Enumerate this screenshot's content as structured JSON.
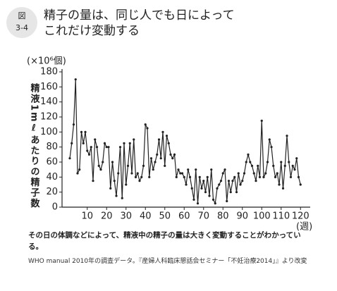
{
  "badge": {
    "label": "図",
    "number": "3-4"
  },
  "caption": "その日の体調などによって、精液中の精子の量は大きく変動することがわかっている。",
  "source": "WHO manual 2010年の調査データ。『産婦人科臨床懇話会セミナー「不妊治療2014」』より改変",
  "chart_data": {
    "type": "line",
    "title": [
      "精子の量は、同じ人でも日によって",
      "これだけ変動する"
    ],
    "y_unit": "(×10⁶個)",
    "y_label": "精液1mℓあたりの精子数",
    "x_label": "(週)",
    "color": "#222222",
    "x": [
      1,
      2,
      3,
      4,
      5,
      6,
      7,
      8,
      9,
      10,
      11,
      12,
      13,
      14,
      15,
      16,
      17,
      18,
      19,
      20,
      21,
      22,
      23,
      24,
      25,
      26,
      27,
      28,
      29,
      30,
      31,
      32,
      33,
      34,
      35,
      36,
      37,
      38,
      39,
      40,
      41,
      42,
      43,
      44,
      45,
      46,
      47,
      48,
      49,
      50,
      51,
      52,
      53,
      54,
      55,
      56,
      57,
      58,
      59,
      60,
      61,
      62,
      63,
      64,
      65,
      66,
      67,
      68,
      69,
      70,
      71,
      72,
      73,
      74,
      75,
      76,
      77,
      78,
      79,
      80,
      81,
      82,
      83,
      84,
      85,
      86,
      87,
      88,
      89,
      90,
      91,
      92,
      93,
      94,
      95,
      96,
      97,
      98,
      99,
      100,
      101,
      102,
      103,
      104,
      105,
      106,
      107,
      108,
      109,
      110,
      111,
      112,
      113,
      114,
      115,
      116,
      117,
      118,
      119,
      120
    ],
    "values": [
      65,
      85,
      110,
      170,
      45,
      50,
      100,
      85,
      100,
      75,
      70,
      80,
      35,
      90,
      80,
      55,
      50,
      60,
      85,
      80,
      80,
      25,
      60,
      35,
      15,
      45,
      80,
      12,
      85,
      30,
      55,
      85,
      45,
      90,
      40,
      45,
      35,
      40,
      55,
      110,
      105,
      40,
      65,
      50,
      60,
      70,
      90,
      65,
      100,
      55,
      95,
      85,
      70,
      65,
      70,
      40,
      50,
      45,
      45,
      40,
      30,
      50,
      40,
      25,
      10,
      50,
      5,
      40,
      25,
      35,
      20,
      40,
      15,
      50,
      10,
      5,
      25,
      30,
      35,
      45,
      50,
      8,
      35,
      20,
      35,
      40,
      20,
      45,
      30,
      35,
      45,
      60,
      70,
      60,
      55,
      45,
      35,
      55,
      40,
      115,
      40,
      45,
      60,
      90,
      80,
      55,
      40,
      45,
      30,
      60,
      25,
      55,
      95,
      60,
      40,
      55,
      50,
      65,
      40,
      30
    ],
    "xlim": [
      -3,
      125
    ],
    "xticks": [
      10,
      20,
      30,
      40,
      50,
      60,
      70,
      80,
      90,
      100,
      110,
      120
    ],
    "ylim": [
      0,
      180
    ],
    "yticks": [
      0,
      20,
      40,
      60,
      80,
      100,
      120,
      140,
      160,
      180
    ]
  }
}
